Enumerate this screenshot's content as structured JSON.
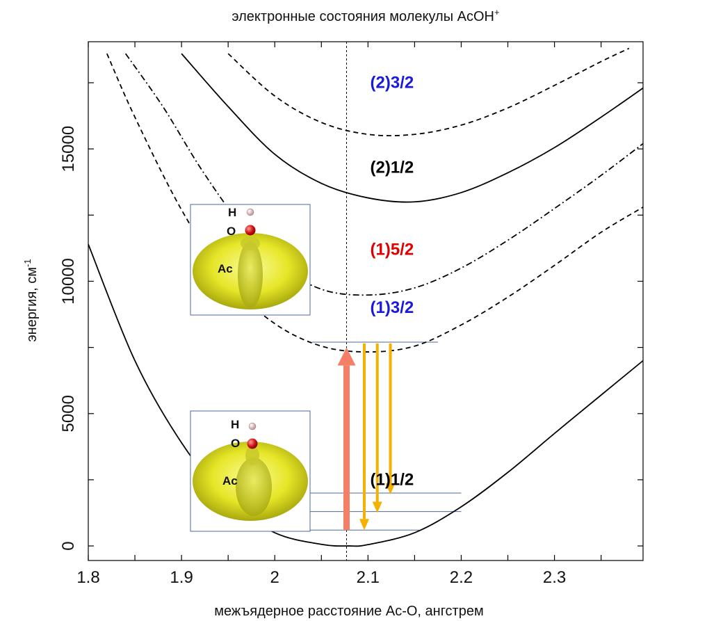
{
  "chart_data": {
    "type": "line",
    "title": "электронные состояния молекулы AcOH",
    "title_superscript": "+",
    "xlabel": "межъядерное расстояние Ac-O, ангстрем",
    "ylabel": "энергия, см",
    "ylabel_superscript": "-1",
    "xlim": [
      1.8,
      2.395
    ],
    "ylim": [
      -550,
      19050
    ],
    "x_ticks": [
      1.8,
      1.9,
      2.0,
      2.1,
      2.2,
      2.3
    ],
    "x_tick_labels": [
      "1.8",
      "1.9",
      "2",
      "2.1",
      "2.2",
      "2.3"
    ],
    "y_ticks": [
      0,
      5000,
      10000,
      15000
    ],
    "y_tick_labels": [
      "0",
      "5000",
      "10000",
      "15000"
    ],
    "grid": false,
    "reference_line_x": 2.077,
    "series": [
      {
        "name": "(1)1/2",
        "label_color": "#000000",
        "style": "solid",
        "x": [
          1.8,
          1.85,
          1.9,
          1.95,
          2.0,
          2.05,
          2.08,
          2.1,
          2.15,
          2.2,
          2.25,
          2.3,
          2.35,
          2.395
        ],
        "y": [
          11400,
          7000,
          3900,
          1700,
          500,
          60,
          0,
          50,
          500,
          1480,
          2780,
          4250,
          5700,
          7000
        ],
        "label_x": 2.08,
        "label_y": 2300
      },
      {
        "name": "(1)3/2",
        "label_color": "#1a1adb",
        "style": "dashed",
        "x": [
          1.82,
          1.85,
          1.9,
          1.95,
          2.0,
          2.05,
          2.1,
          2.15,
          2.2,
          2.25,
          2.3,
          2.35,
          2.395
        ],
        "y": [
          18600,
          16200,
          12700,
          10000,
          8400,
          7550,
          7330,
          7550,
          8350,
          9400,
          10600,
          11850,
          12800
        ],
        "label_x": 2.08,
        "label_y": 8800
      },
      {
        "name": "(1)5/2",
        "label_color": "#e00000",
        "style": "dashdot",
        "x": [
          1.84,
          1.88,
          1.92,
          1.96,
          2.0,
          2.05,
          2.1,
          2.15,
          2.2,
          2.25,
          2.3,
          2.35,
          2.395
        ],
        "y": [
          18600,
          16600,
          14300,
          12300,
          10700,
          9700,
          9480,
          9750,
          10500,
          11550,
          12750,
          14000,
          15200
        ],
        "label_x": 2.08,
        "label_y": 11000
      },
      {
        "name": "(2)1/2",
        "label_color": "#000000",
        "style": "solid",
        "x": [
          1.9,
          1.95,
          2.0,
          2.05,
          2.1,
          2.15,
          2.2,
          2.25,
          2.3,
          2.35,
          2.395
        ],
        "y": [
          18600,
          16600,
          14800,
          13700,
          13150,
          13000,
          13350,
          14100,
          15050,
          16200,
          17300
        ],
        "label_x": 2.08,
        "label_y": 14100
      },
      {
        "name": "(2)3/2",
        "label_color": "#1a1adb",
        "style": "dashed",
        "x": [
          1.95,
          2.0,
          2.05,
          2.1,
          2.15,
          2.2,
          2.25,
          2.3,
          2.35,
          2.38
        ],
        "y": [
          18600,
          17000,
          16000,
          15550,
          15550,
          15900,
          16550,
          17400,
          18300,
          18800
        ],
        "label_x": 2.08,
        "label_y": 17300
      }
    ],
    "transitions": {
      "excitation": {
        "color": "#f47f66",
        "x": 2.077,
        "from": 600,
        "to": 7500
      },
      "emission": [
        {
          "color": "#f5b000",
          "x": 2.096,
          "from": 7650,
          "to": 600
        },
        {
          "color": "#f5b000",
          "x": 2.11,
          "from": 7650,
          "to": 1250
        },
        {
          "color": "#f5b000",
          "x": 2.124,
          "from": 7650,
          "to": 1950
        }
      ]
    },
    "vibrational_levels": [
      {
        "y": 7700,
        "x_from": 2.04,
        "x_to": 2.175
      },
      {
        "y": 2000,
        "x_from": 2.02,
        "x_to": 2.2
      },
      {
        "y": 1300,
        "x_from": 2.0,
        "x_to": 2.2
      },
      {
        "y": 600,
        "x_from": 1.98,
        "x_to": 2.155
      }
    ],
    "insets": [
      {
        "name": "upper",
        "atoms": [
          "H",
          "O",
          "Ac"
        ]
      },
      {
        "name": "lower",
        "atoms": [
          "H",
          "O",
          "Ac"
        ]
      }
    ]
  }
}
